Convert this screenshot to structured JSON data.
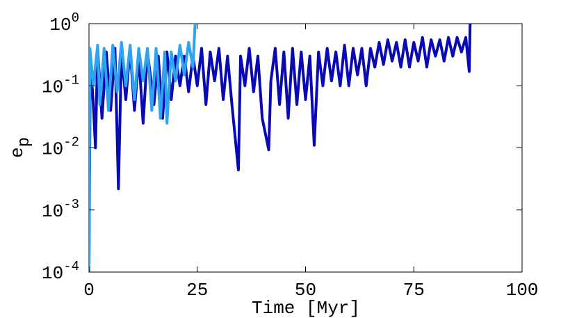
{
  "chart_data": {
    "type": "line",
    "xlabel": "Time [Myr]",
    "ylabel": "e_p",
    "log_y": true,
    "xlim": [
      0,
      100
    ],
    "xticks": [
      0,
      25,
      50,
      75,
      100
    ],
    "ylim": [
      0.0001,
      1
    ],
    "yticks": [
      {
        "value": 0.0001,
        "label": "10^-4"
      },
      {
        "value": 0.001,
        "label": "10^-3"
      },
      {
        "value": 0.01,
        "label": "10^-2"
      },
      {
        "value": 0.1,
        "label": "10^-1"
      },
      {
        "value": 1,
        "label": "10^0"
      }
    ],
    "series": [
      {
        "color": "#0a0ab4",
        "x": [
          0,
          0.3,
          1,
          1.5,
          2,
          3,
          4,
          5,
          6,
          6.8,
          7.5,
          8.5,
          9.5,
          10.5,
          11.5,
          12.5,
          13.5,
          15,
          16,
          17,
          18,
          19,
          20,
          21,
          22,
          23,
          24,
          25,
          26,
          27,
          28,
          29,
          30,
          31,
          32,
          33,
          34.5,
          35,
          36,
          37,
          38,
          39,
          40,
          41.5,
          42,
          43,
          44,
          45,
          46,
          47,
          48,
          49,
          50,
          51,
          52,
          53,
          54,
          55,
          56,
          57,
          58,
          59,
          60,
          61,
          62,
          63,
          64,
          65,
          66,
          67,
          68,
          69,
          70,
          71,
          72,
          73,
          74,
          75,
          76,
          77,
          78,
          79,
          80,
          81,
          82,
          83,
          84,
          85,
          86,
          87,
          87.8,
          88
        ],
        "values": [
          0.0001,
          0.3,
          0.05,
          0.01,
          0.4,
          0.03,
          0.35,
          0.04,
          0.4,
          0.0022,
          0.35,
          0.06,
          0.4,
          0.04,
          0.3,
          0.025,
          0.35,
          0.05,
          0.3,
          0.03,
          0.35,
          0.06,
          0.3,
          0.1,
          0.3,
          0.08,
          0.3,
          0.1,
          0.4,
          0.05,
          0.35,
          0.12,
          0.4,
          0.06,
          0.3,
          0.05,
          0.0044,
          0.3,
          0.1,
          0.4,
          0.08,
          0.3,
          0.03,
          0.0093,
          0.12,
          0.4,
          0.05,
          0.35,
          0.03,
          0.4,
          0.05,
          0.35,
          0.06,
          0.3,
          0.011,
          0.35,
          0.1,
          0.4,
          0.12,
          0.35,
          0.1,
          0.45,
          0.1,
          0.4,
          0.15,
          0.4,
          0.1,
          0.4,
          0.2,
          0.5,
          0.22,
          0.55,
          0.25,
          0.5,
          0.2,
          0.55,
          0.2,
          0.5,
          0.25,
          0.6,
          0.2,
          0.55,
          0.3,
          0.55,
          0.25,
          0.6,
          0.3,
          0.6,
          0.35,
          0.6,
          0.17,
          1
        ]
      },
      {
        "color": "#2ea3f0",
        "x": [
          0,
          0.2,
          1,
          2,
          2.5,
          3.5,
          4.5,
          5.5,
          6.5,
          7.5,
          8.5,
          9.5,
          10.5,
          11.5,
          12.5,
          13.5,
          14.5,
          15.5,
          16.5,
          17.5,
          18,
          19,
          20,
          21,
          22,
          23,
          24,
          24.5
        ],
        "values": [
          0.0001,
          0.4,
          0.1,
          0.45,
          0.05,
          0.4,
          0.04,
          0.45,
          0.08,
          0.5,
          0.1,
          0.45,
          0.06,
          0.4,
          0.12,
          0.4,
          0.04,
          0.4,
          0.03,
          0.35,
          0.025,
          0.35,
          0.12,
          0.45,
          0.15,
          0.5,
          0.2,
          1
        ]
      }
    ]
  }
}
